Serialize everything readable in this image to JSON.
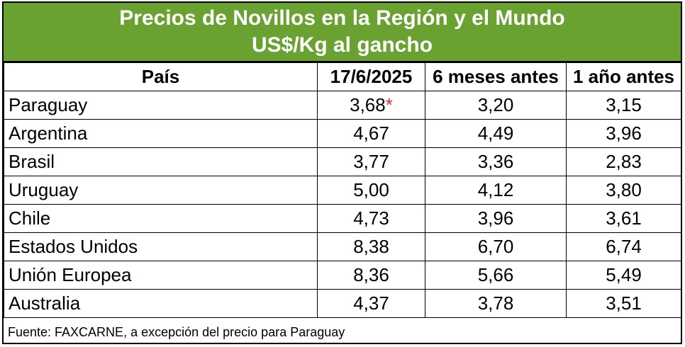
{
  "title": {
    "line1": "Precios de Novillos en la Región y el Mundo",
    "line2": "US$/Kg al gancho"
  },
  "colors": {
    "header_band": "#6aa232",
    "asterisk": "#d22b2b"
  },
  "chart_data": {
    "type": "table",
    "title": "Precios de Novillos en la Región y el Mundo",
    "subtitle": "US$/Kg al gancho",
    "columns": [
      "País",
      "17/6/2025",
      "6 meses antes",
      "1 año antes"
    ],
    "rows": [
      {
        "country": "Paraguay",
        "current": "3,68",
        "mark": "*",
        "six_months": "3,20",
        "one_year": "3,15"
      },
      {
        "country": "Argentina",
        "current": "4,67",
        "mark": "",
        "six_months": "4,49",
        "one_year": "3,96"
      },
      {
        "country": "Brasil",
        "current": "3,77",
        "mark": "",
        "six_months": "3,36",
        "one_year": "2,83"
      },
      {
        "country": "Uruguay",
        "current": "5,00",
        "mark": "",
        "six_months": "4,12",
        "one_year": "3,80"
      },
      {
        "country": "Chile",
        "current": "4,73",
        "mark": "",
        "six_months": "3,96",
        "one_year": "3,61"
      },
      {
        "country": "Estados Unidos",
        "current": "8,38",
        "mark": "",
        "six_months": "6,70",
        "one_year": "6,74"
      },
      {
        "country": "Unión Europea",
        "current": "8,36",
        "mark": "",
        "six_months": "5,66",
        "one_year": "5,49"
      },
      {
        "country": "Australia",
        "current": "4,37",
        "mark": "",
        "six_months": "3,78",
        "one_year": "3,51"
      }
    ],
    "footnote": "Fuente: FAXCARNE, a excepción del precio para Paraguay"
  }
}
